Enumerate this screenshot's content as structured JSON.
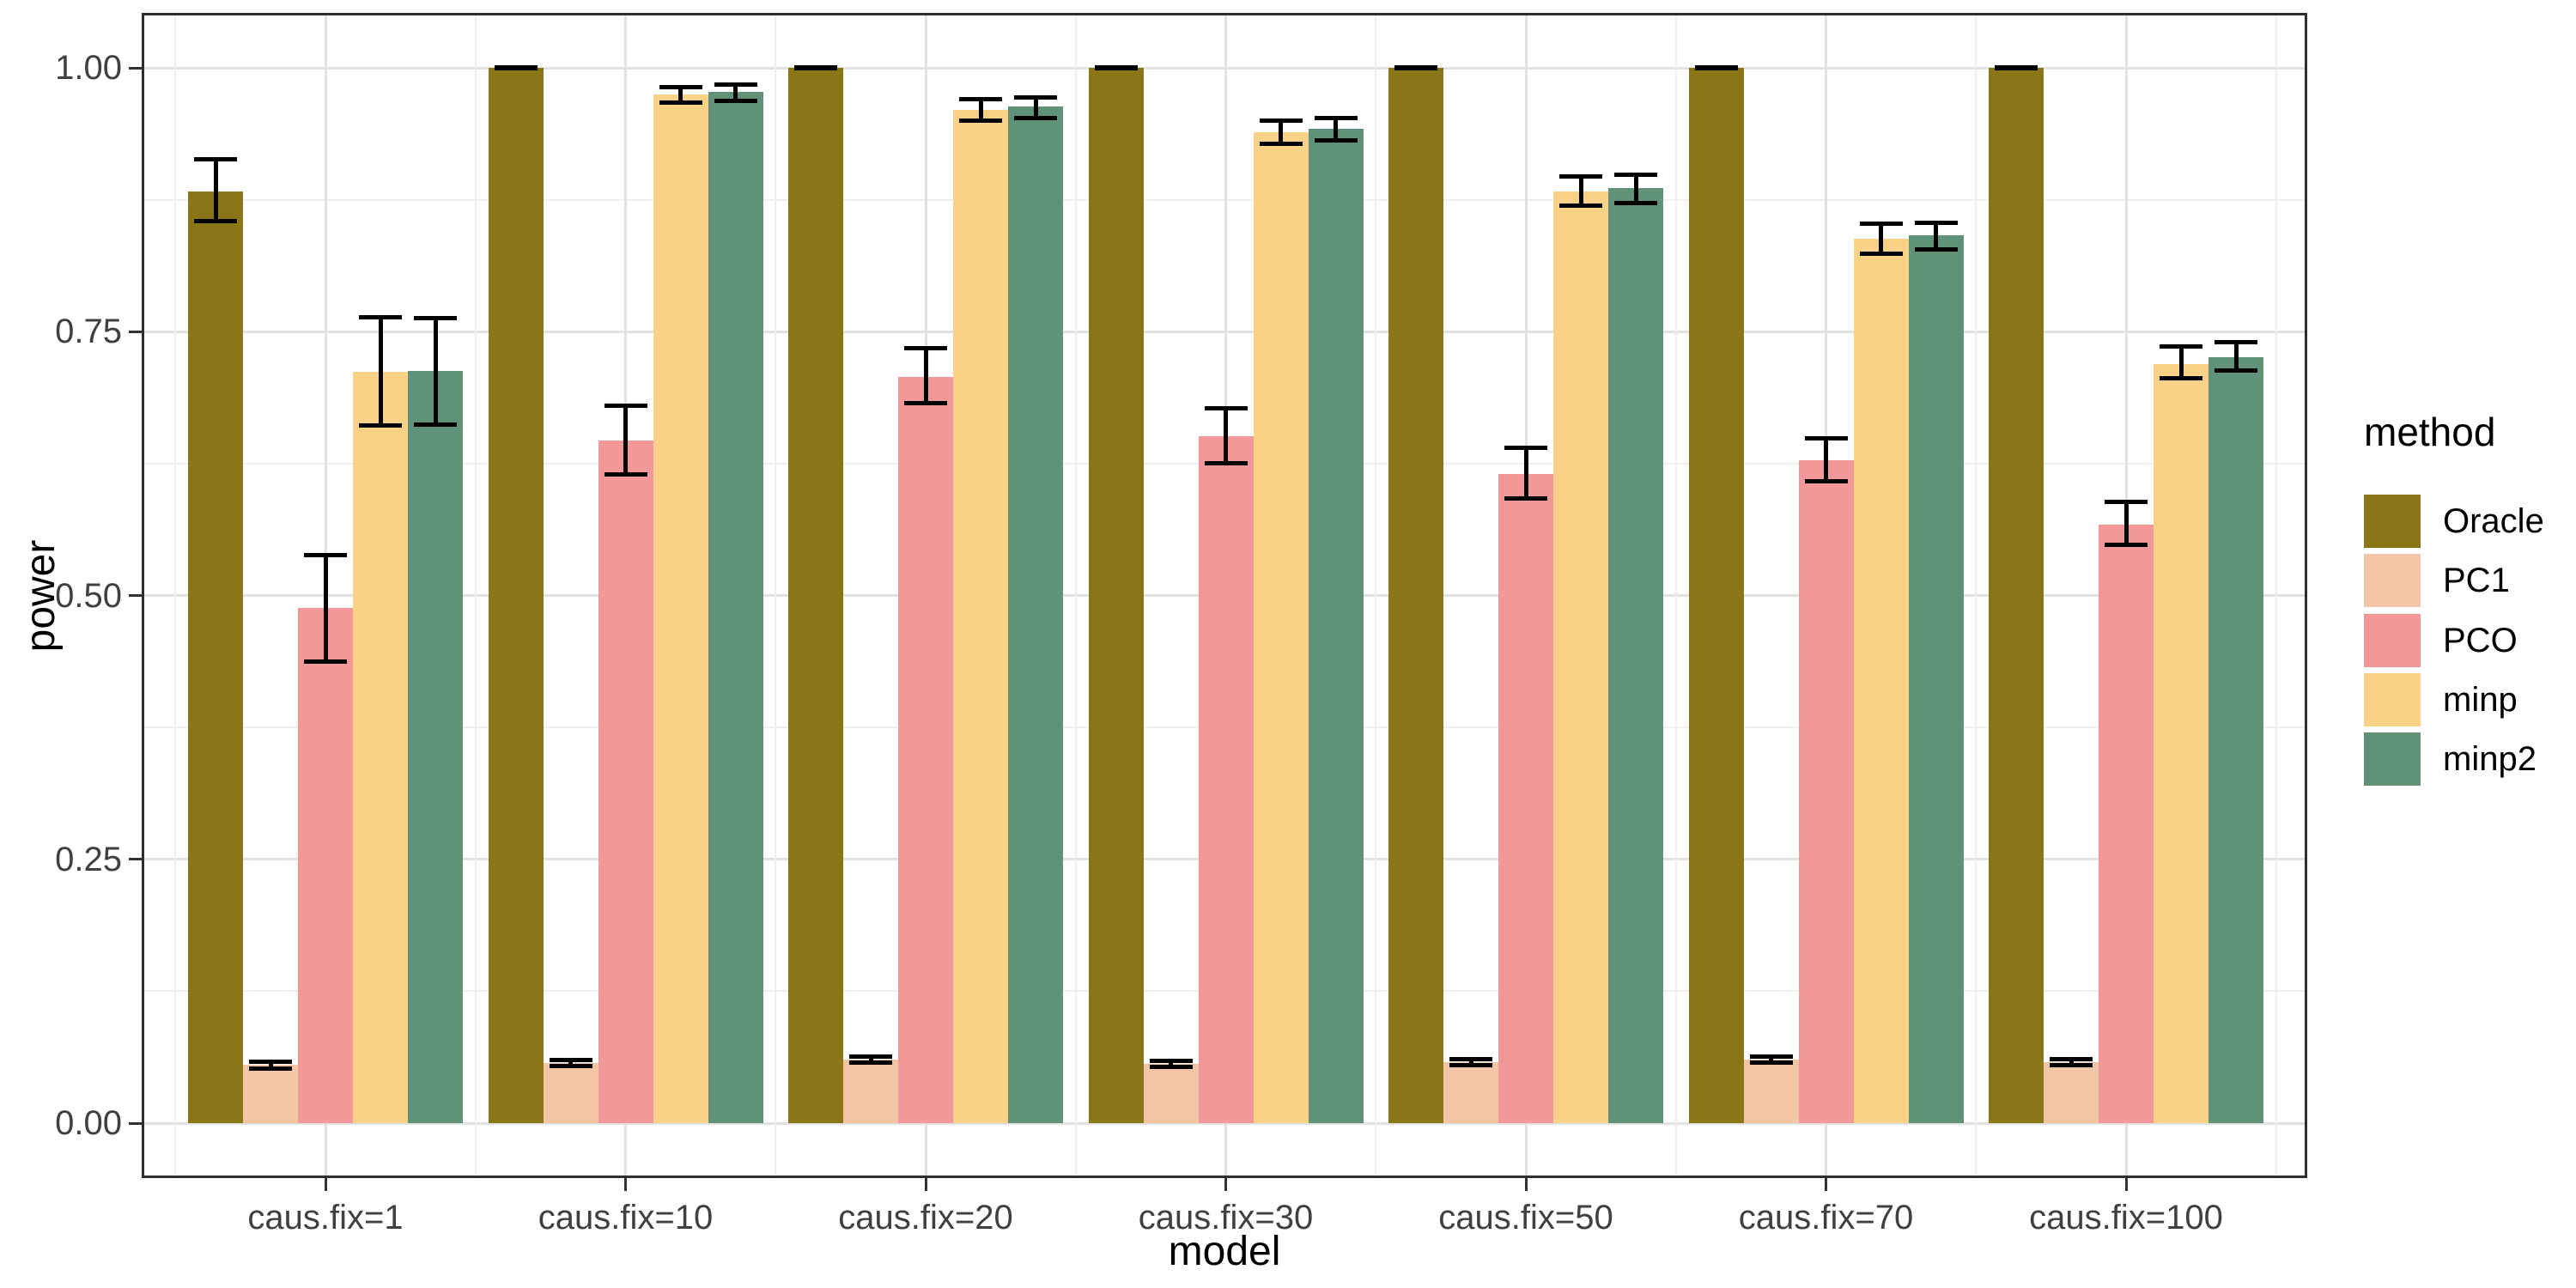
{
  "chart_data": {
    "type": "bar",
    "title": "",
    "xlabel": "model",
    "ylabel": "power",
    "legend_title": "method",
    "legend_position": "right",
    "grid": true,
    "ylim": [
      0,
      1
    ],
    "ytick_labels": [
      "0.00",
      "0.25",
      "0.50",
      "0.75",
      "1.00"
    ],
    "ytick_values": [
      0,
      0.25,
      0.5,
      0.75,
      1.0
    ],
    "yminor_values": [
      0.125,
      0.375,
      0.625,
      0.875
    ],
    "categories": [
      "caus.fix=1",
      "caus.fix=10",
      "caus.fix=20",
      "caus.fix=30",
      "caus.fix=50",
      "caus.fix=70",
      "caus.fix=100"
    ],
    "series": [
      {
        "name": "Oracle",
        "color": "#8A7617",
        "values": [
          0.883,
          1.0,
          1.0,
          1.0,
          1.0,
          1.0,
          1.0
        ],
        "error_lo": [
          0.855,
          1.0,
          1.0,
          1.0,
          1.0,
          1.0,
          1.0
        ],
        "error_hi": [
          0.913,
          1.0,
          1.0,
          1.0,
          1.0,
          1.0,
          1.0
        ]
      },
      {
        "name": "PC1",
        "color": "#F2C5A5",
        "values": [
          0.055,
          0.057,
          0.06,
          0.056,
          0.058,
          0.06,
          0.058
        ],
        "error_lo": [
          0.052,
          0.054,
          0.057,
          0.053,
          0.055,
          0.057,
          0.055
        ],
        "error_hi": [
          0.058,
          0.06,
          0.063,
          0.059,
          0.061,
          0.063,
          0.061
        ]
      },
      {
        "name": "PCO",
        "color": "#F29898",
        "values": [
          0.488,
          0.647,
          0.707,
          0.651,
          0.615,
          0.628,
          0.567
        ],
        "error_lo": [
          0.437,
          0.615,
          0.682,
          0.625,
          0.592,
          0.608,
          0.548
        ],
        "error_hi": [
          0.538,
          0.68,
          0.734,
          0.677,
          0.64,
          0.649,
          0.589
        ]
      },
      {
        "name": "minp",
        "color": "#FAD287",
        "values": [
          0.712,
          0.975,
          0.96,
          0.939,
          0.883,
          0.838,
          0.719
        ],
        "error_lo": [
          0.661,
          0.967,
          0.95,
          0.928,
          0.869,
          0.824,
          0.706
        ],
        "error_hi": [
          0.764,
          0.982,
          0.97,
          0.95,
          0.897,
          0.852,
          0.736
        ]
      },
      {
        "name": "minp2",
        "color": "#5F9278",
        "values": [
          0.713,
          0.977,
          0.963,
          0.942,
          0.886,
          0.841,
          0.726
        ],
        "error_lo": [
          0.662,
          0.969,
          0.952,
          0.931,
          0.872,
          0.828,
          0.713
        ],
        "error_hi": [
          0.763,
          0.984,
          0.972,
          0.952,
          0.899,
          0.853,
          0.74
        ]
      }
    ]
  }
}
